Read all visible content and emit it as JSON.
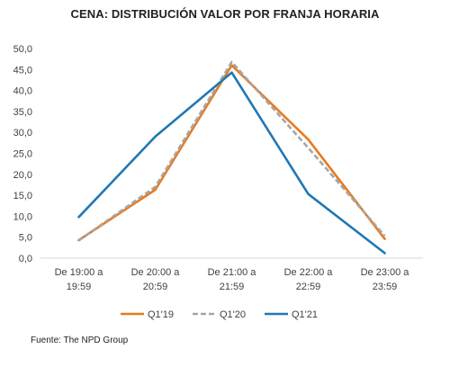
{
  "chart_data": {
    "type": "line",
    "title": "CENA: DISTRIBUCIÓN VALOR POR FRANJA HORARIA",
    "categories": [
      [
        "De 19:00 a",
        "19:59"
      ],
      [
        "De 20:00 a",
        "20:59"
      ],
      [
        "De 21:00 a",
        "21:59"
      ],
      [
        "De 22:00 a",
        "22:59"
      ],
      [
        "De 23:00 a",
        "23:59"
      ]
    ],
    "ylim": [
      0,
      50
    ],
    "yticks": [
      "0,0",
      "5,0",
      "10,0",
      "15,0",
      "20,0",
      "25,0",
      "30,0",
      "35,0",
      "40,0",
      "45,0",
      "50,0"
    ],
    "grid": false,
    "legend_position": "bottom",
    "series": [
      {
        "name": "Q1'19",
        "values": [
          4.3,
          16.3,
          46.0,
          28.3,
          4.6
        ],
        "color": "#E87A1E",
        "dash": "solid"
      },
      {
        "name": "Q1'20",
        "values": [
          4.2,
          17.0,
          46.8,
          26.3,
          5.3
        ],
        "color": "#A6A6A6",
        "dash": "dashed"
      },
      {
        "name": "Q1'21",
        "values": [
          9.8,
          29.0,
          44.3,
          15.3,
          1.2
        ],
        "color": "#1F78B4",
        "dash": "solid"
      }
    ]
  },
  "source": "Fuente: The NPD Group"
}
